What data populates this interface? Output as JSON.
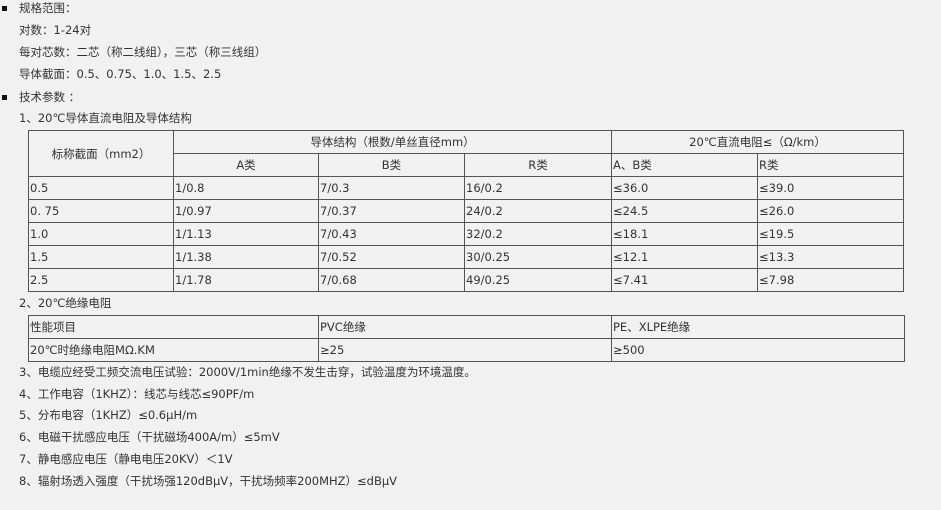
{
  "spec": {
    "title": "规格范围：",
    "pairs": "对数：1-24对",
    "cores": "每对芯数：二芯（称二线组），三芯（称三线组）",
    "sections": "导体截面：0.5、0.75、1.0、1.5、2.5"
  },
  "tech": {
    "title": "技术参数 ：",
    "t1_title": "1、20℃导体直流电阻及导体结构",
    "t1": {
      "h_section": "标称截面（mm2）",
      "h_struct": "导体结构（根数/单丝直径mm）",
      "h_res": "20℃直流电阻≤（Ω/km）",
      "h_a": "A类",
      "h_b": "B类",
      "h_r": "R类",
      "h_ab": "A、B类",
      "h_r2": "R类",
      "rows": [
        [
          "0.5",
          "1/0.8",
          "7/0.3",
          "16/0.2",
          "≤36.0",
          "≤39.0"
        ],
        [
          "0. 75",
          "1/0.97",
          "7/0.37",
          "24/0.2",
          "≤24.5",
          "≤26.0"
        ],
        [
          "1.0",
          "1/1.13",
          "7/0.43",
          "32/0.2",
          "≤18.1",
          "≤19.5"
        ],
        [
          "1.5",
          "1/1.38",
          "7/0.52",
          "30/0.25",
          "≤12.1",
          "≤13.3"
        ],
        [
          "2.5",
          "1/1.78",
          "7/0.68",
          "49/0.25",
          "≤7.41",
          "≤7.98"
        ]
      ]
    },
    "t2_title": "2、20℃绝缘电阻",
    "t2": {
      "rows": [
        [
          "性能项目",
          "PVC绝缘",
          "PE、XLPE绝缘"
        ],
        [
          "20℃时绝缘电阻MΩ.KM",
          "≥25",
          "≥500"
        ]
      ]
    },
    "items": [
      "3、电缆应经受工频交流电压试验：2000V/1min绝缘不发生击穿，试验温度为环境温度。",
      "4、工作电容（1KHZ）：线芯与线芯≤90PF/m",
      "5、分布电容（1KHZ）≤0.6μH/m",
      "6、电磁干扰感应电压（干扰磁场400A/m）≤5mV",
      "7、静电感应电压（静电电压20KV）＜1V",
      "8、辐射场透入强度（干扰场强120dBμV，干扰场频率200MHZ）≤dBμV"
    ]
  }
}
